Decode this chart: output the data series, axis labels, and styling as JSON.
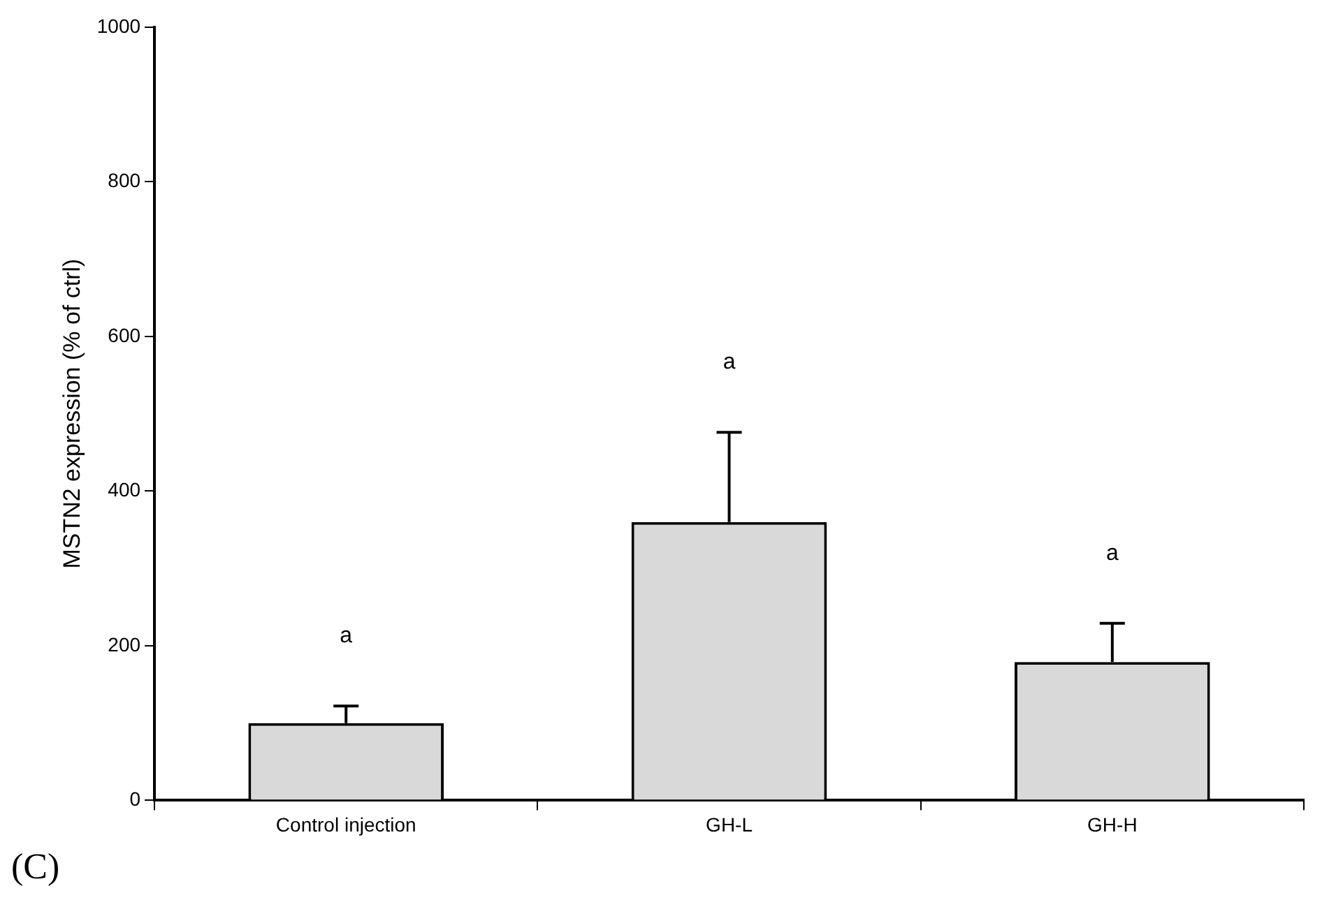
{
  "chart_data": {
    "type": "bar",
    "ylabel": "MSTN2 expression (% of ctrl)",
    "categories": [
      "Control injection",
      "GH-L",
      "GH-H"
    ],
    "values": [
      100,
      360,
      179
    ],
    "errors": [
      [
        100,
        122
      ],
      [
        360,
        476
      ],
      [
        179,
        229
      ]
    ],
    "color": "#d9d9d9",
    "ylim": [
      0,
      1000
    ],
    "yticks": [
      0,
      200,
      400,
      600,
      800,
      1000
    ],
    "grid": false,
    "legend": false,
    "annotations": [
      "a",
      "a",
      "a",
      "(C)"
    ]
  }
}
